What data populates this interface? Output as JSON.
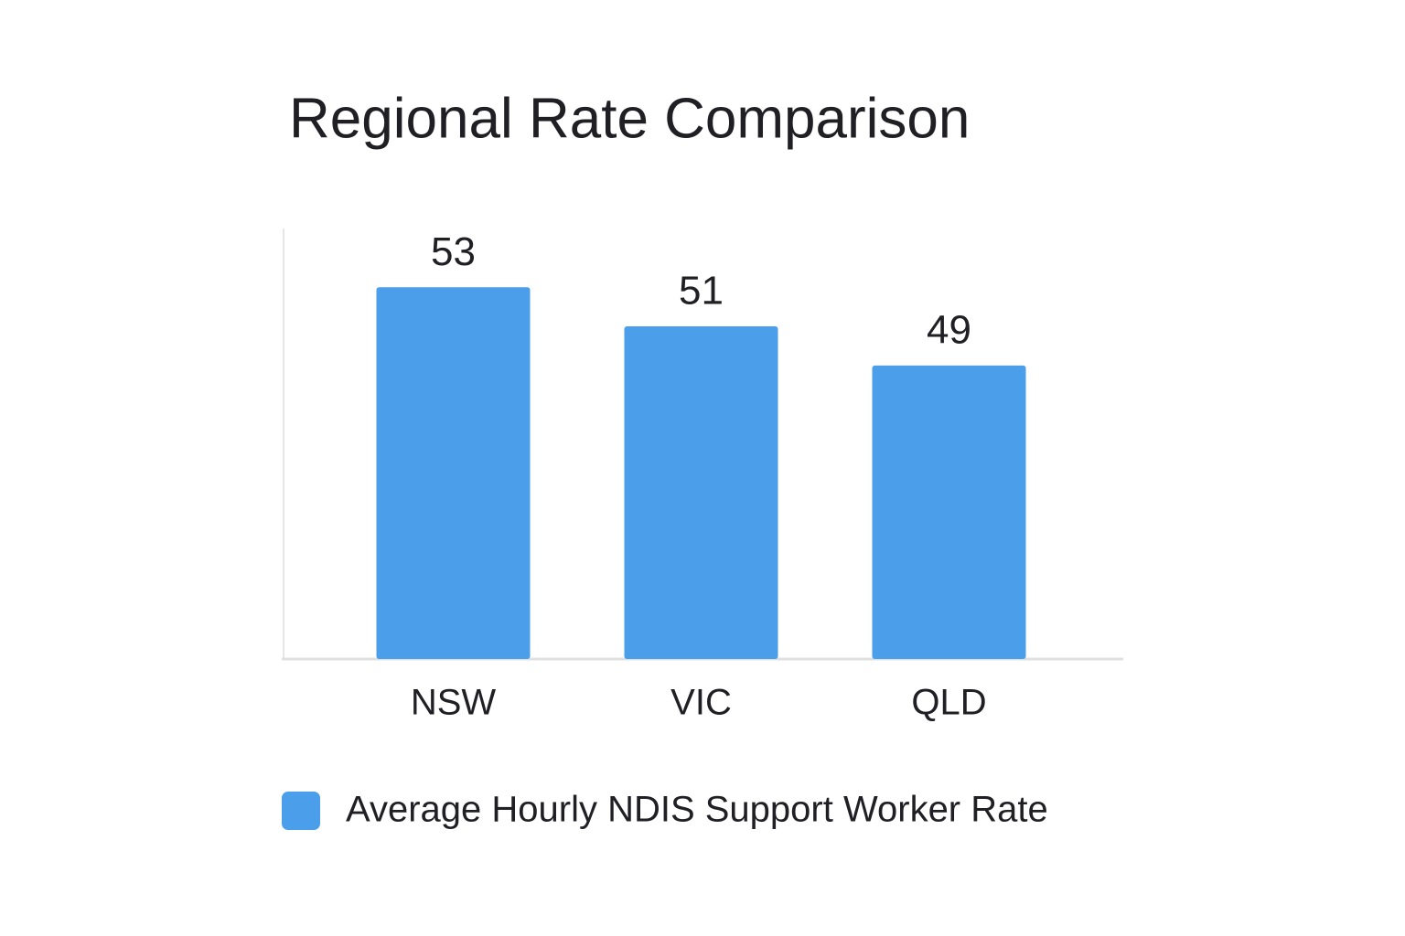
{
  "chart_data": {
    "type": "bar",
    "title": "Regional Rate Comparison",
    "categories": [
      "NSW",
      "VIC",
      "QLD"
    ],
    "series": [
      {
        "name": "Average Hourly NDIS Support Worker Rate",
        "color": "#4a9eea",
        "values": [
          53,
          51,
          49
        ]
      }
    ],
    "ylim": [
      34,
      56
    ],
    "legend": "bottom"
  }
}
